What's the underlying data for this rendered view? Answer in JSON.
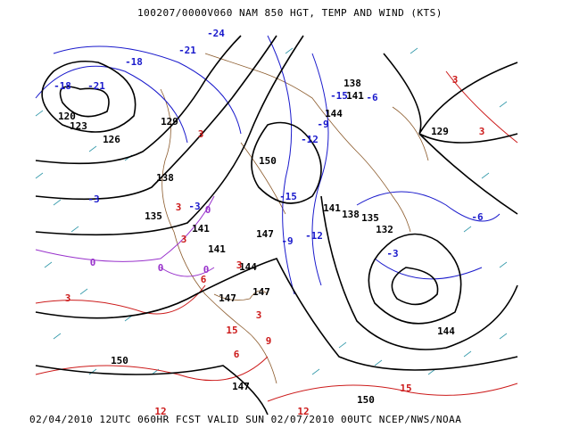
{
  "header": {
    "title": "100207/0000V060 NAM 850 HGT, TEMP AND WIND (KTS)"
  },
  "map": {
    "contour_label_groups": [
      {
        "color": "#000000",
        "labels": [
          "120",
          "123",
          "126",
          "129",
          "138",
          "135",
          "141",
          "147",
          "141",
          "144",
          "147",
          "147",
          "150",
          "147",
          "150",
          "144",
          "138",
          "141",
          "144",
          "135",
          "132",
          "138",
          "141",
          "150",
          "129"
        ]
      },
      {
        "color": "#1a1acc",
        "labels": [
          "-18",
          "-21",
          "-21",
          "-18",
          "-15",
          "-12",
          "-9",
          "-9",
          "-6",
          "-3",
          "-3",
          "-24",
          "-15",
          "-12",
          "-3",
          "-6"
        ]
      },
      {
        "color": "#9933cc",
        "labels": [
          "0",
          "0",
          "0",
          "0"
        ]
      },
      {
        "color": "#cc1a1a",
        "labels": [
          "3",
          "3",
          "3",
          "3",
          "6",
          "3",
          "3",
          "9",
          "6",
          "15",
          "12",
          "15",
          "3",
          "3",
          "12"
        ]
      }
    ]
  },
  "footer": {
    "caption": "02/04/2010 12UTC 060HR FCST VALID SUN 02/07/2010 00UTC  NCEP/NWS/NOAA"
  }
}
